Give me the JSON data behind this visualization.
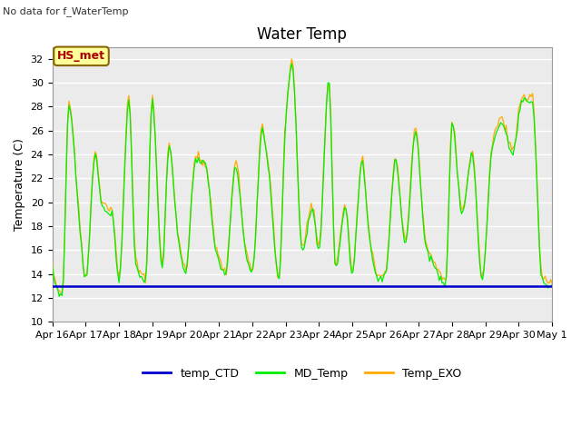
{
  "title": "Water Temp",
  "subtitle": "No data for f_WaterTemp",
  "ylabel": "Temperature (C)",
  "ylim": [
    10,
    33
  ],
  "yticks": [
    10,
    12,
    14,
    16,
    18,
    20,
    22,
    24,
    26,
    28,
    30,
    32
  ],
  "xlabels": [
    "Apr 16",
    "Apr 17",
    "Apr 18",
    "Apr 19",
    "Apr 20",
    "Apr 21",
    "Apr 22",
    "Apr 23",
    "Apr 24",
    "Apr 25",
    "Apr 26",
    "Apr 27",
    "Apr 28",
    "Apr 29",
    "Apr 30",
    "May 1"
  ],
  "ctd_value": 13.0,
  "legend_entries": [
    "temp_CTD",
    "MD_Temp",
    "Temp_EXO"
  ],
  "legend_colors": [
    "#0000cc",
    "#00ee00",
    "#ffaa00"
  ],
  "hs_met_label": "HS_met",
  "hs_met_text_color": "#aa0000",
  "hs_met_bg": "#ffff99",
  "hs_met_edge": "#886600",
  "background_color": "#ebebeb",
  "grid_color": "#ffffff",
  "figsize": [
    6.4,
    4.8
  ],
  "dpi": 100
}
